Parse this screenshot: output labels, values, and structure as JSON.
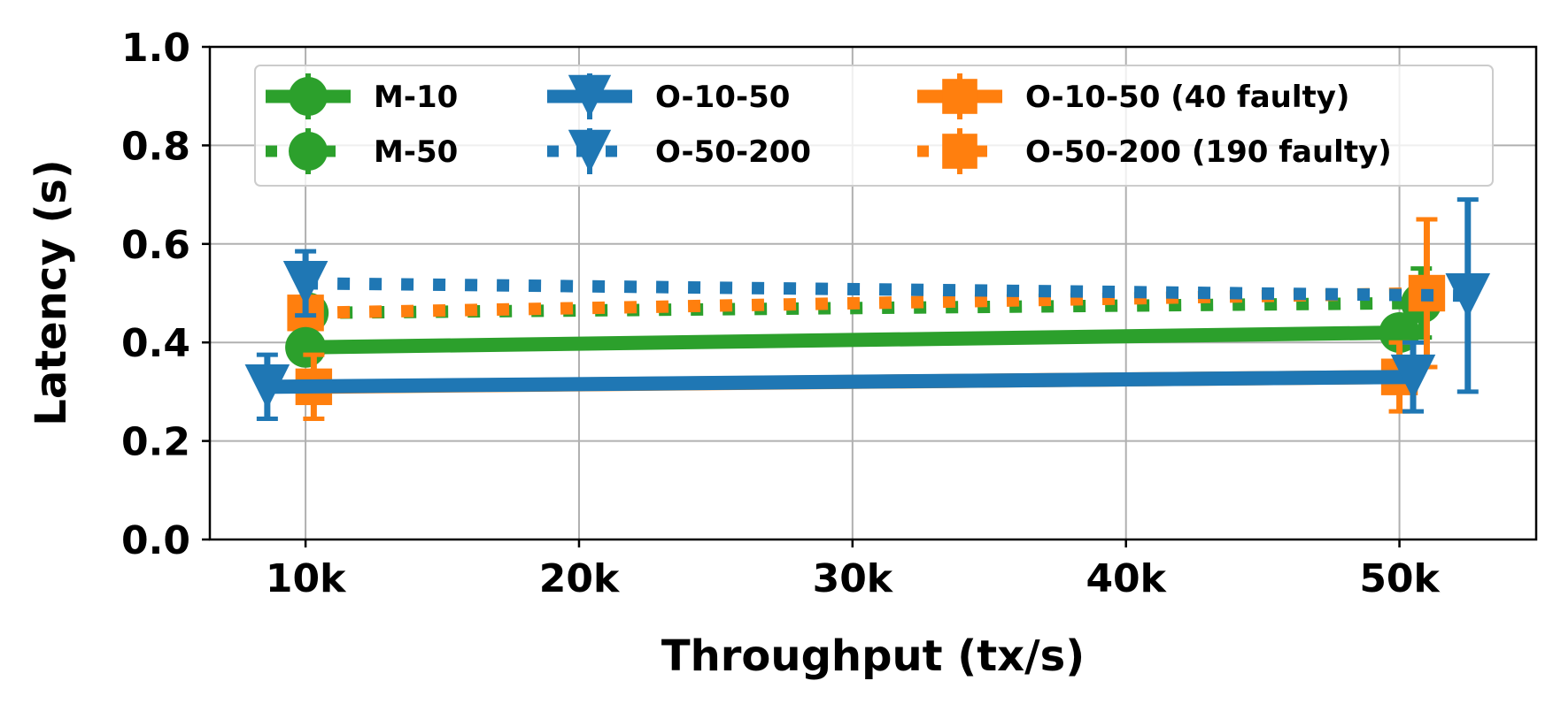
{
  "chart_data": {
    "type": "line",
    "title": "",
    "xlabel": "Throughput (tx/s)",
    "ylabel": "Latency (s)",
    "xlim": [
      6500,
      55000
    ],
    "ylim": [
      0.0,
      1.0
    ],
    "x_ticks": [
      {
        "value": 10000,
        "label": "10k"
      },
      {
        "value": 20000,
        "label": "20k"
      },
      {
        "value": 30000,
        "label": "30k"
      },
      {
        "value": 40000,
        "label": "40k"
      },
      {
        "value": 50000,
        "label": "50k"
      }
    ],
    "y_ticks": [
      {
        "value": 0.0,
        "label": "0.0"
      },
      {
        "value": 0.2,
        "label": "0.2"
      },
      {
        "value": 0.4,
        "label": "0.4"
      },
      {
        "value": 0.6,
        "label": "0.6"
      },
      {
        "value": 0.8,
        "label": "0.8"
      },
      {
        "value": 1.0,
        "label": "1.0"
      }
    ],
    "grid": true,
    "legend": {
      "placement": "top",
      "columns": 3
    },
    "series": [
      {
        "name": "M-10",
        "color": "#2ca02c",
        "linestyle": "solid",
        "marker": "circle",
        "points": [
          {
            "x": 10000,
            "y": 0.39,
            "err": 0.0
          },
          {
            "x": 50000,
            "y": 0.42,
            "err": 0.0
          }
        ]
      },
      {
        "name": "M-50",
        "color": "#2ca02c",
        "linestyle": "dotted",
        "marker": "circle",
        "points": [
          {
            "x": 10100,
            "y": 0.46,
            "err": 0.02
          },
          {
            "x": 50800,
            "y": 0.48,
            "err": 0.07
          }
        ]
      },
      {
        "name": "O-10-50",
        "color": "#1f77b4",
        "linestyle": "solid",
        "marker": "triangle-down",
        "points": [
          {
            "x": 8600,
            "y": 0.31,
            "err": 0.065
          },
          {
            "x": 50500,
            "y": 0.33,
            "err": 0.07
          }
        ]
      },
      {
        "name": "O-50-200",
        "color": "#1f77b4",
        "linestyle": "dotted",
        "marker": "triangle-down",
        "points": [
          {
            "x": 10000,
            "y": 0.52,
            "err": 0.065
          },
          {
            "x": 52500,
            "y": 0.495,
            "err": 0.195
          }
        ]
      },
      {
        "name": "O-10-50 (40 faulty)",
        "color": "#ff7f0e",
        "linestyle": "solid",
        "marker": "square",
        "points": [
          {
            "x": 10300,
            "y": 0.31,
            "err": 0.065
          },
          {
            "x": 50000,
            "y": 0.33,
            "err": 0.07
          }
        ]
      },
      {
        "name": "O-50-200 (190 faulty)",
        "color": "#ff7f0e",
        "linestyle": "dotted",
        "marker": "square",
        "points": [
          {
            "x": 10000,
            "y": 0.46,
            "err": 0.03
          },
          {
            "x": 51000,
            "y": 0.5,
            "err": 0.15
          }
        ]
      }
    ]
  }
}
